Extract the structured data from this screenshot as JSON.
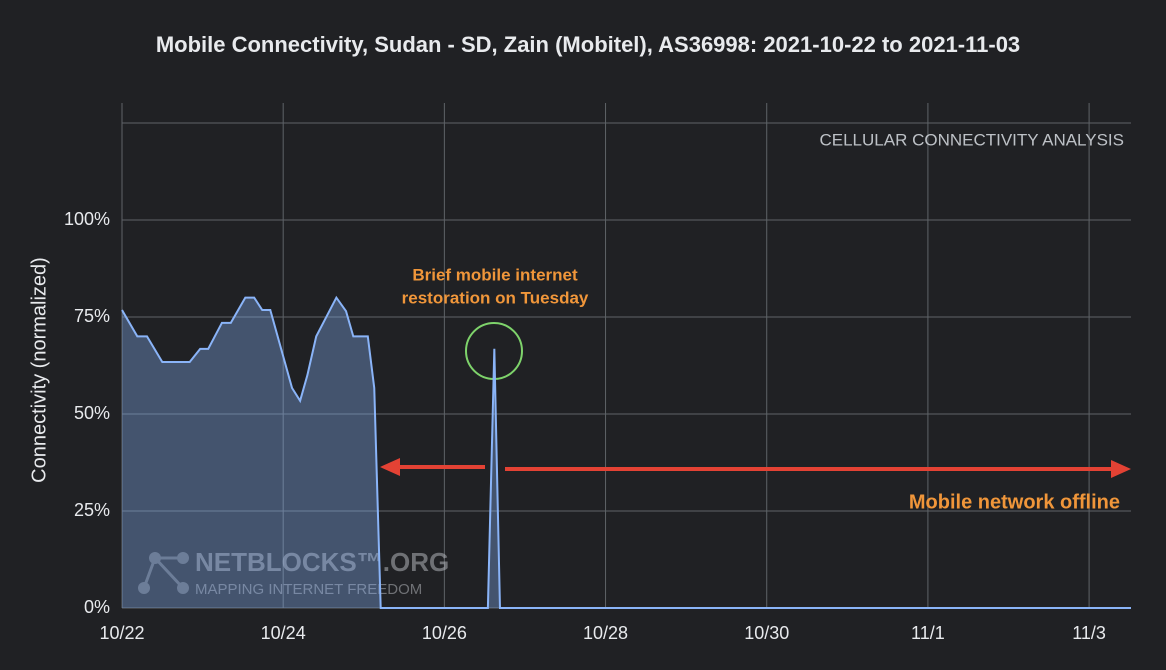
{
  "chart_data": {
    "type": "area",
    "title": "Mobile Connectivity, Sudan - SD, Zain (Mobitel), AS36998: 2021-10-22 to 2021-11-03",
    "y_label": "Connectivity (normalized)",
    "x": [
      0,
      0.19,
      0.31,
      0.5,
      0.84,
      0.97,
      1.07,
      1.24,
      1.35,
      1.53,
      1.64,
      1.74,
      1.84,
      2.11,
      2.21,
      2.3,
      2.41,
      2.66,
      2.78,
      2.87,
      3.05,
      3.13,
      3.21,
      4.54,
      4.62,
      4.69,
      12.52
    ],
    "series": [
      {
        "name": "Connectivity",
        "color": "#8ab4f8",
        "values": [
          76.8,
          70,
          70,
          63.4,
          63.4,
          66.8,
          66.8,
          73.5,
          73.5,
          80,
          80,
          76.8,
          76.8,
          56.7,
          53.4,
          60,
          70,
          80,
          76.5,
          70,
          70,
          56.7,
          0,
          0,
          66.8,
          0,
          0
        ]
      }
    ],
    "xlim": [
      0,
      12.52
    ],
    "xticks": [
      {
        "value": 0,
        "label": "10/22"
      },
      {
        "value": 2,
        "label": "10/24"
      },
      {
        "value": 4,
        "label": "10/26"
      },
      {
        "value": 6,
        "label": "10/28"
      },
      {
        "value": 8,
        "label": "10/30"
      },
      {
        "value": 10,
        "label": "11/1"
      },
      {
        "value": 12,
        "label": "11/3"
      }
    ],
    "ylim": [
      0,
      125
    ],
    "yticks": [
      {
        "value": 0,
        "label": "0%"
      },
      {
        "value": 25,
        "label": "25%"
      },
      {
        "value": 50,
        "label": "50%"
      },
      {
        "value": 75,
        "label": "75%"
      },
      {
        "value": 100,
        "label": "100%"
      }
    ],
    "grid": true,
    "annotations": {
      "analysis": "CELLULAR CONNECTIVITY ANALYSIS",
      "restoration": [
        "Brief mobile internet",
        "restoration on Tuesday"
      ],
      "offline": "Mobile network offline",
      "watermark": [
        "NETBLOCKS™.ORG",
        "MAPPING INTERNET FREEDOM"
      ]
    }
  }
}
